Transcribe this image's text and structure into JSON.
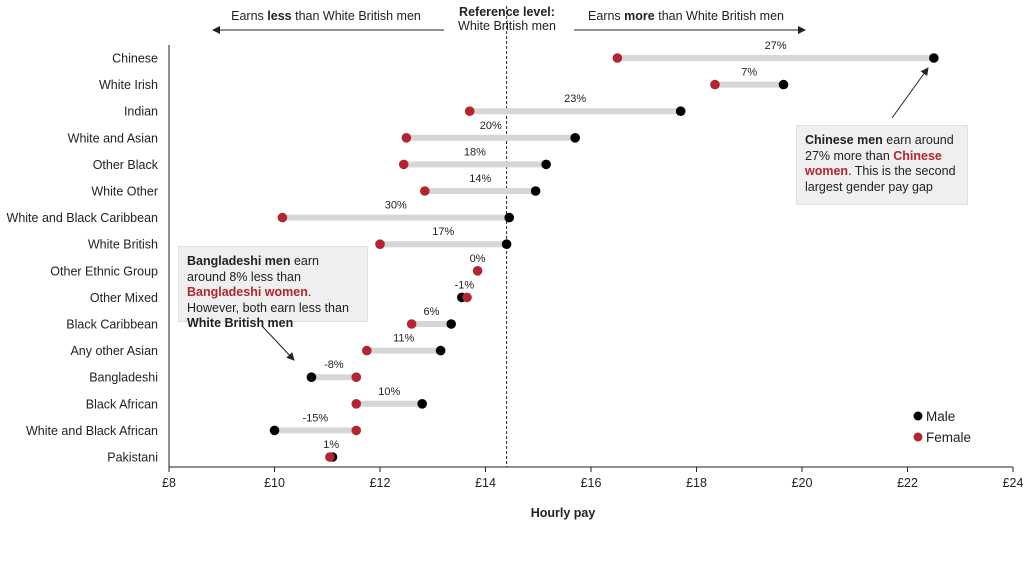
{
  "chart_data": {
    "type": "dumbbell",
    "xlabel": "Hourly pay",
    "xlim": [
      8,
      24
    ],
    "xticks": [
      "£8",
      "£10",
      "£12",
      "£14",
      "£16",
      "£18",
      "£20",
      "£22",
      "£24"
    ],
    "reference_value": 14.4,
    "header": {
      "left_pre": "Earns ",
      "left_bold": "less",
      "left_post": " than White British men",
      "center_line1": "Reference level:",
      "center_line2": "White British men",
      "right_pre": "Earns ",
      "right_bold": "more",
      "right_post": " than White British men"
    },
    "categories": [
      "Chinese",
      "White Irish",
      "Indian",
      "White and Asian",
      "Other Black",
      "White Other",
      "White and Black Caribbean",
      "White British",
      "Other Ethnic Group",
      "Other Mixed",
      "Black Caribbean",
      "Any other Asian",
      "Bangladeshi",
      "Black African",
      "White and Black African",
      "Pakistani"
    ],
    "series": [
      {
        "name": "Male",
        "color": "#000000",
        "values": [
          22.5,
          19.65,
          17.7,
          15.7,
          15.15,
          14.95,
          14.45,
          14.4,
          null,
          13.55,
          13.35,
          13.15,
          10.7,
          12.8,
          10.0,
          11.1
        ]
      },
      {
        "name": "Female",
        "color": "#b5252f",
        "values": [
          16.5,
          18.35,
          13.7,
          12.5,
          12.45,
          12.85,
          10.15,
          12.0,
          13.85,
          13.65,
          12.6,
          11.75,
          11.55,
          11.55,
          11.55,
          11.05
        ]
      }
    ],
    "gap_labels": [
      "27%",
      "7%",
      "23%",
      "20%",
      "18%",
      "14%",
      "30%",
      "17%",
      "0%",
      "-1%",
      "6%",
      "11%",
      "-8%",
      "10%",
      "-15%",
      "1%"
    ],
    "legend": {
      "male": "Male",
      "female": "Female",
      "position": "bottom-right"
    }
  },
  "callouts": {
    "chinese": {
      "p1_bold": "Chinese men",
      "p2": " earn around 27% more than ",
      "p3_red": "Chinese women",
      "p4": ". This is the second largest gender pay gap"
    },
    "bangladeshi": {
      "p1_bold": "Bangladeshi men",
      "p2": " earn around 8% less than ",
      "p3_red": "Bangladeshi women",
      "p4": ". However, both earn less than ",
      "p5_bold": "White British men"
    }
  }
}
